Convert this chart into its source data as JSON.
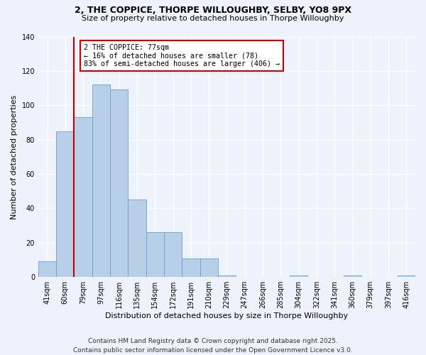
{
  "title1": "2, THE COPPICE, THORPE WILLOUGHBY, SELBY, YO8 9PX",
  "title2": "Size of property relative to detached houses in Thorpe Willoughby",
  "xlabel": "Distribution of detached houses by size in Thorpe Willoughby",
  "ylabel": "Number of detached properties",
  "bin_labels": [
    "41sqm",
    "60sqm",
    "79sqm",
    "97sqm",
    "116sqm",
    "135sqm",
    "154sqm",
    "172sqm",
    "191sqm",
    "210sqm",
    "229sqm",
    "247sqm",
    "266sqm",
    "285sqm",
    "304sqm",
    "322sqm",
    "341sqm",
    "360sqm",
    "379sqm",
    "397sqm",
    "416sqm"
  ],
  "bar_values": [
    9,
    85,
    93,
    112,
    109,
    45,
    26,
    26,
    11,
    11,
    1,
    0,
    0,
    0,
    1,
    0,
    0,
    1,
    0,
    0,
    1
  ],
  "bar_color": "#b8cfe8",
  "bar_edge_color": "#6a9fd0",
  "vline_color": "#cc0000",
  "annotation_line1": "2 THE COPPICE: 77sqm",
  "annotation_line2": "← 16% of detached houses are smaller (78)",
  "annotation_line3": "83% of semi-detached houses are larger (406) →",
  "annotation_box_edgecolor": "#cc0000",
  "ylim": [
    0,
    140
  ],
  "yticks": [
    0,
    20,
    40,
    60,
    80,
    100,
    120,
    140
  ],
  "footer": "Contains HM Land Registry data © Crown copyright and database right 2025.\nContains public sector information licensed under the Open Government Licence v3.0.",
  "background_color": "#eef2fb"
}
